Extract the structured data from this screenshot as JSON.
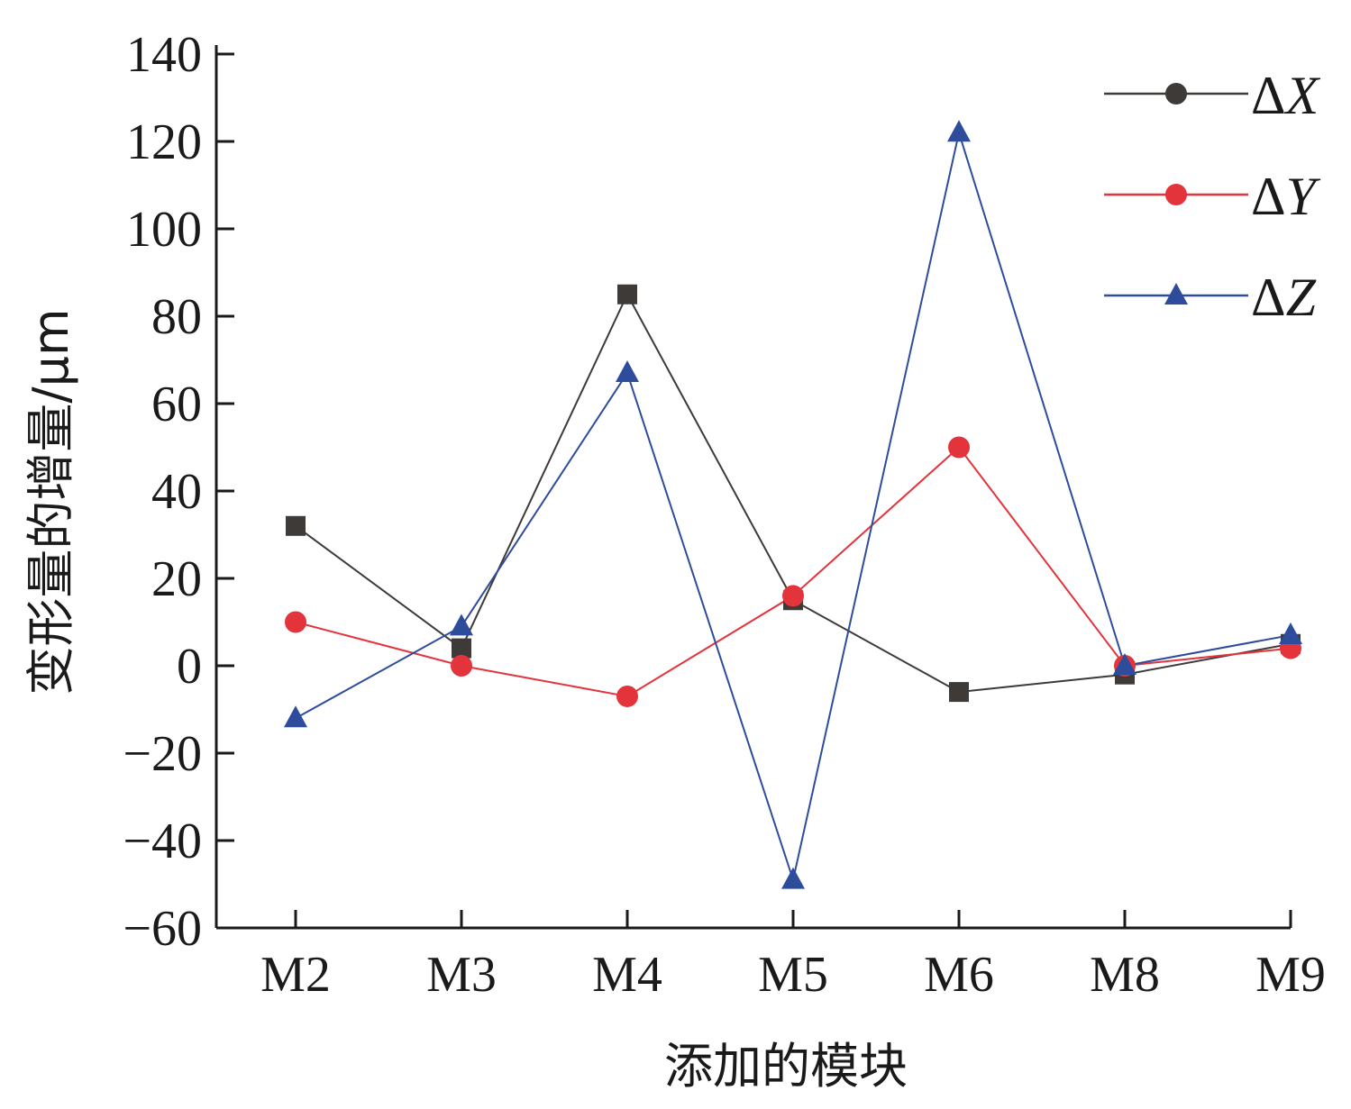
{
  "chart_data": {
    "type": "line",
    "categories": [
      "M2",
      "M3",
      "M4",
      "M5",
      "M6",
      "M8",
      "M9"
    ],
    "series": [
      {
        "name": "ΔX",
        "symbol": "Δ",
        "var": "X",
        "marker": "square",
        "color": "#3d3a38",
        "values": [
          32,
          4,
          85,
          15,
          -6,
          -2,
          5
        ]
      },
      {
        "name": "ΔY",
        "symbol": "Δ",
        "var": "Y",
        "marker": "circle",
        "color": "#e3343c",
        "values": [
          10,
          0,
          -7,
          16,
          50,
          0,
          4
        ]
      },
      {
        "name": "ΔZ",
        "symbol": "Δ",
        "var": "Z",
        "marker": "triangle",
        "color": "#2d4c9c",
        "values": [
          -12,
          9,
          67,
          -49,
          122,
          0,
          7
        ]
      }
    ],
    "xlabel": "添加的模块",
    "ylabel": "变形量的增量/μm",
    "ylim": [
      -60,
      140
    ],
    "yticks": [
      -60,
      -40,
      -20,
      0,
      20,
      40,
      60,
      80,
      100,
      120,
      140
    ],
    "legend_position": "top-right",
    "grid": false
  }
}
